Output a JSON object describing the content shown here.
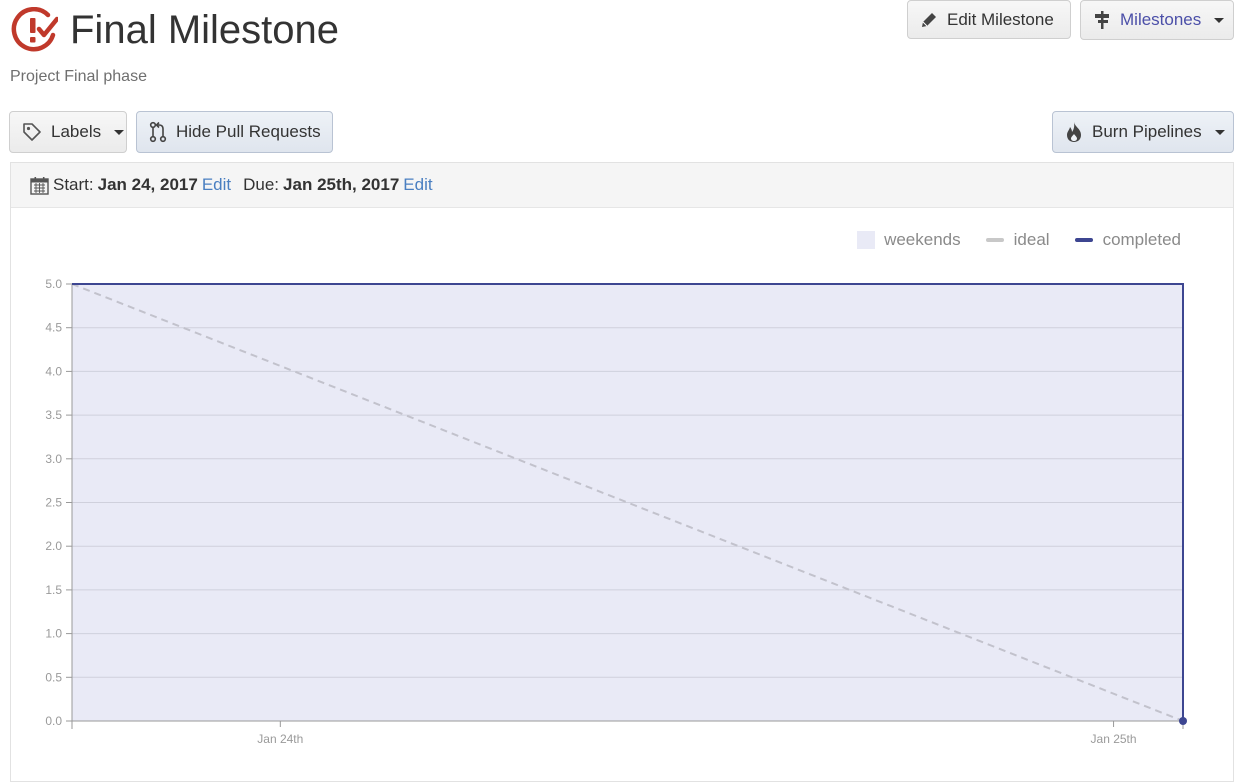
{
  "header": {
    "title": "Final Milestone",
    "subtitle": "Project Final phase",
    "edit_button": "Edit Milestone",
    "milestones_button": "Milestones"
  },
  "toolbar": {
    "labels_button": "Labels",
    "hide_pr_button": "Hide Pull Requests",
    "burn_button": "Burn Pipelines"
  },
  "dates": {
    "start_label": "Start:",
    "start_value": "Jan 24, 2017",
    "start_edit": "Edit",
    "due_label": "Due:",
    "due_value": "Jan 25th, 2017",
    "due_edit": "Edit"
  },
  "icons": {
    "logo": "zenhub-logo-icon",
    "edit": "pencil-icon",
    "milestones": "signpost-icon",
    "labels": "tag-icon",
    "hide_pr": "pull-request-icon",
    "burn": "flame-icon",
    "calendar": "calendar-icon"
  },
  "colors": {
    "logo": "#c0392b",
    "accent": "#4b4fa8",
    "completed": "#3d4691",
    "ideal": "#c2c2cc",
    "weekends": "#e9eaf6",
    "link": "#4a7fc1"
  },
  "chart_data": {
    "type": "line",
    "legend": [
      "weekends",
      "ideal",
      "completed"
    ],
    "legend_position": "top-right",
    "x_ticks": [
      "Jan 24th",
      "Jan 25th"
    ],
    "y_ticks": [
      "5.0",
      "4.5",
      "4.0",
      "3.5",
      "3.0",
      "2.5",
      "2.0",
      "1.5",
      "1.0",
      "0.5",
      "0.0"
    ],
    "ylim": [
      0,
      5
    ],
    "grid": true,
    "weekend_shading": {
      "from": 0,
      "to": 1
    },
    "series": [
      {
        "name": "ideal",
        "style": "dashed",
        "x": [
          0,
          1
        ],
        "y": [
          5,
          0
        ]
      },
      {
        "name": "completed",
        "style": "solid",
        "x": [
          0,
          1,
          1
        ],
        "y": [
          5,
          5,
          0
        ]
      }
    ]
  }
}
